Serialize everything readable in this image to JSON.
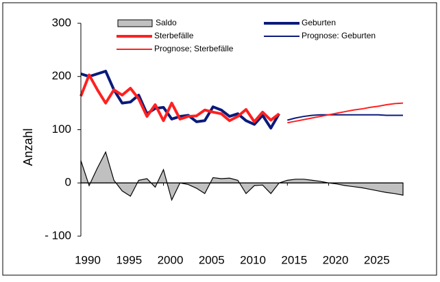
{
  "chart_data": {
    "type": "line",
    "ylabel": "Anzahl",
    "x": [
      1990,
      1991,
      1992,
      1993,
      1994,
      1995,
      1996,
      1997,
      1998,
      1999,
      2000,
      2001,
      2002,
      2003,
      2004,
      2005,
      2006,
      2007,
      2008,
      2009,
      2010,
      2011,
      2012,
      2013,
      2014,
      2015,
      2016,
      2017,
      2018,
      2019,
      2020,
      2021,
      2022,
      2023,
      2024,
      2025,
      2026,
      2027,
      2028,
      2029
    ],
    "xlim": [
      1990,
      2029
    ],
    "xticks": [
      1990,
      1995,
      2000,
      2005,
      2010,
      2015,
      2020,
      2025
    ],
    "ylim": [
      -100,
      300
    ],
    "yticks": [
      {
        "value": -100,
        "label": "- 100"
      },
      0,
      100,
      200,
      300
    ],
    "series": [
      {
        "name": "Saldo",
        "kind": "area",
        "color": "#c0c0c0",
        "values": [
          42,
          -5,
          28,
          58,
          5,
          -15,
          -25,
          5,
          8,
          -8,
          25,
          -32,
          0,
          -3,
          -10,
          -20,
          10,
          8,
          9,
          5,
          -20,
          -5,
          -4,
          -20,
          0,
          5,
          7,
          7,
          5,
          3,
          0,
          -2,
          -5,
          -7,
          -9,
          -12,
          -15,
          -18,
          -20,
          -23
        ]
      },
      {
        "name": "Geburten",
        "kind": "line",
        "color": "#0a1a7a",
        "width": 4,
        "values": [
          205,
          200,
          205,
          210,
          175,
          150,
          152,
          165,
          130,
          140,
          142,
          120,
          125,
          127,
          115,
          117,
          143,
          137,
          125,
          130,
          117,
          110,
          127,
          103,
          130,
          null,
          null,
          null,
          null,
          null,
          null,
          null,
          null,
          null,
          null,
          null,
          null,
          null,
          null,
          null
        ]
      },
      {
        "name": "Sterbefälle",
        "kind": "line",
        "color": "#ff2020",
        "width": 4,
        "values": [
          163,
          203,
          175,
          150,
          175,
          165,
          178,
          158,
          125,
          147,
          117,
          150,
          120,
          125,
          126,
          137,
          133,
          130,
          117,
          125,
          138,
          115,
          133,
          118,
          130,
          null,
          null,
          null,
          null,
          null,
          null,
          null,
          null,
          null,
          null,
          null,
          null,
          null,
          null,
          null
        ]
      },
      {
        "name": "Prognose: Geburten",
        "kind": "line",
        "color": "#0a1a7a",
        "width": 2,
        "values": [
          null,
          null,
          null,
          null,
          null,
          null,
          null,
          null,
          null,
          null,
          null,
          null,
          null,
          null,
          null,
          null,
          null,
          null,
          null,
          null,
          null,
          null,
          null,
          null,
          null,
          118,
          122,
          125,
          127,
          128,
          128,
          128,
          128,
          128,
          128,
          128,
          128,
          127,
          127,
          127
        ]
      },
      {
        "name": "Prognose; Sterbefälle",
        "kind": "line",
        "color": "#ff2020",
        "width": 2,
        "values": [
          null,
          null,
          null,
          null,
          null,
          null,
          null,
          null,
          null,
          null,
          null,
          null,
          null,
          null,
          null,
          null,
          null,
          null,
          null,
          null,
          null,
          null,
          null,
          null,
          null,
          113,
          116,
          119,
          122,
          125,
          128,
          131,
          134,
          137,
          139,
          142,
          144,
          147,
          149,
          150
        ]
      }
    ]
  }
}
